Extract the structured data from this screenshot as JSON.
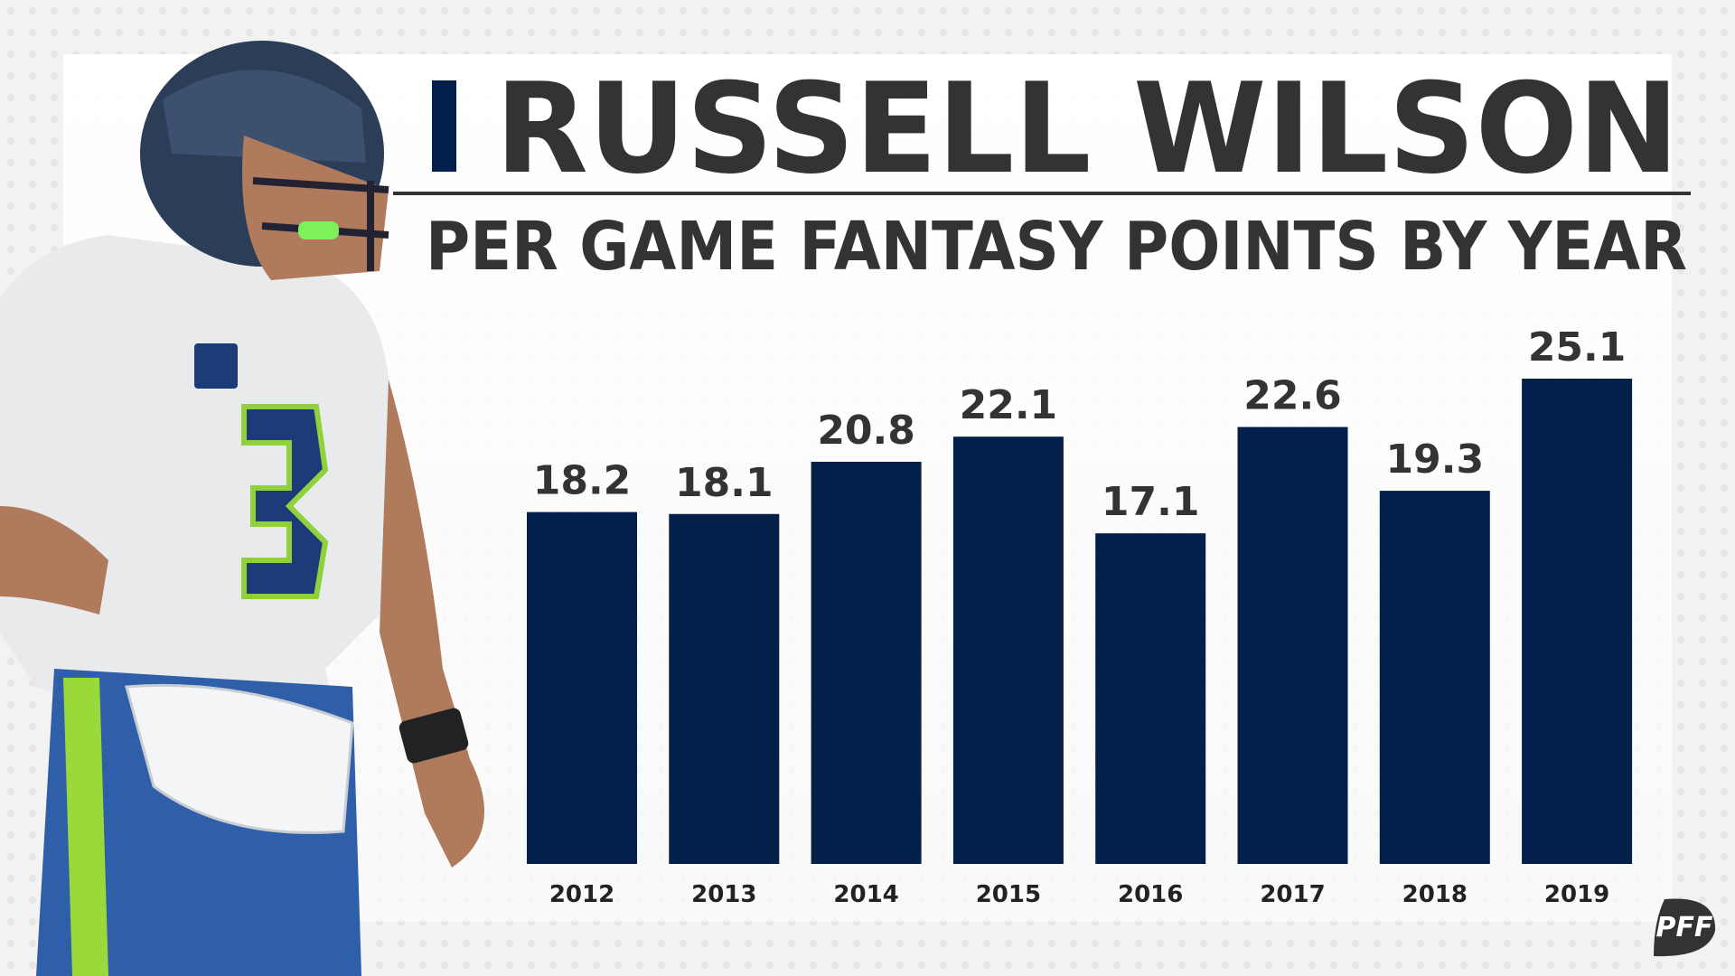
{
  "chart_data": {
    "type": "bar",
    "title": "RUSSELL WILSON",
    "subtitle": "PER GAME FANTASY POINTS BY YEAR",
    "categories": [
      "2012",
      "2013",
      "2014",
      "2015",
      "2016",
      "2017",
      "2018",
      "2019"
    ],
    "values": [
      18.2,
      18.1,
      20.8,
      22.1,
      17.1,
      22.6,
      19.3,
      25.1
    ],
    "color": "#03204a",
    "logo": "PFF"
  }
}
